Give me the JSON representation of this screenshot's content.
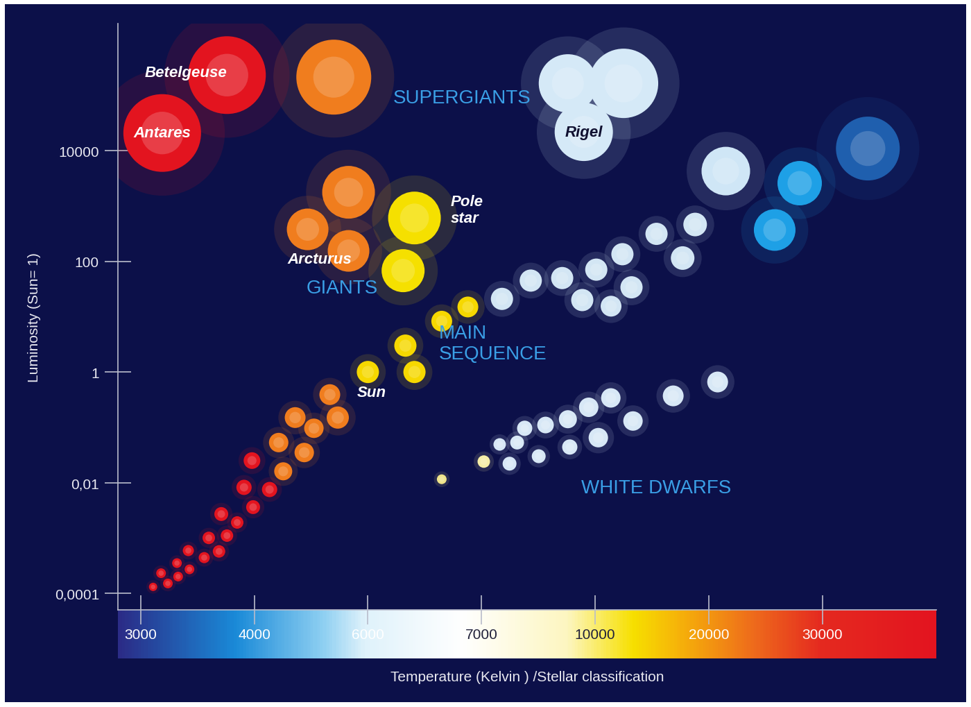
{
  "chart_data": {
    "type": "scatter",
    "xlabel": "Temperature (Kelvin ) /Stellar classification",
    "ylabel": "Luminosity (Sun= 1)",
    "log": "y",
    "grid": false,
    "xlim": [
      40000,
      2800
    ],
    "xticks": [
      30000,
      20000,
      10000,
      7000,
      6000,
      4000,
      3000
    ],
    "ylim": [
      5e-05,
      2000000
    ],
    "yticks": [
      {
        "value": 0.0001,
        "label": "0,0001"
      },
      {
        "value": 0.01,
        "label": "0,01"
      },
      1,
      100,
      10000
    ],
    "series": [
      {
        "x": [
          34000,
          28000,
          21500,
          25800,
          18800,
          15400,
          17700,
          12400,
          10100,
          9130,
          8300,
          13200,
          9660,
          11400,
          7540,
          6880,
          6650,
          6330,
          6410,
          6000,
          5330,
          5470,
          5050,
          4720,
          4430,
          4880,
          4510,
          3980,
          4270,
          3910,
          3990,
          3710,
          3850,
          3760,
          3600,
          3690,
          3420,
          3560,
          3320,
          3430,
          3180,
          3330,
          3240,
          3110
        ],
        "values": [
          11000,
          2600,
          4300,
          370,
          465,
          315,
          115,
          135,
          71,
          50,
          45,
          34,
          20,
          15.5,
          21,
          15,
          8.3,
          3,
          1,
          1,
          0.39,
          0.15,
          0.096,
          0.15,
          0.053,
          0.035,
          0.016,
          0.025,
          0.0075,
          0.0082,
          0.0036,
          0.0027,
          0.0019,
          0.0011,
          0.001,
          0.00057,
          0.00059,
          0.00044,
          0.00035,
          0.00027,
          0.00023,
          0.0002,
          0.00015,
          0.00013
        ],
        "sizes": [
          46,
          32,
          35,
          30,
          17,
          16,
          17,
          16,
          16,
          16,
          16,
          16,
          16,
          15,
          16,
          15,
          15,
          16,
          16,
          16,
          15,
          16,
          14,
          15,
          14,
          14,
          13,
          12,
          11,
          11,
          10,
          10,
          9,
          9,
          9,
          9,
          8,
          8,
          7,
          7,
          7,
          7,
          7,
          6
        ],
        "colors": [
          "#1f5fae",
          "#1ea0e6",
          "#cfe6f6",
          "#1ea0e6",
          "#d3e6f4",
          "#d3e6f4",
          "#d3e6f4",
          "#d3e6f4",
          "#d3e6f4",
          "#d3e6f4",
          "#d3e6f4",
          "#d3e6f4",
          "#d3e6f4",
          "#d3e6f4",
          "#d3e6f4",
          "#f6d800",
          "#f6d800",
          "#f6d800",
          "#f6d800",
          "#f6d800",
          "#f07d1e",
          "#f07d1e",
          "#f07d1e",
          "#f07d1e",
          "#f07d1e",
          "#f07d1e",
          "#f07d1e",
          "#e3141f",
          "#e3141f",
          "#e3141f",
          "#e3141f",
          "#e3141f",
          "#e3141f",
          "#e3141f",
          "#e3141f",
          "#e3141f",
          "#e3141f",
          "#e3141f",
          "#e3141f",
          "#e3141f",
          "#e3141f",
          "#e3141f",
          "#e3141f",
          "#e3141f"
        ]
      },
      {
        "x": [
          20780,
          16870,
          11380,
          9830,
          13330,
          9280,
          8690,
          8140,
          10280,
          9330,
          7940,
          7480,
          8510,
          7740,
          7060,
          6650
        ],
        "values": [
          0.66,
          0.37,
          0.34,
          0.23,
          0.13,
          0.14,
          0.11,
          0.096,
          0.065,
          0.044,
          0.053,
          0.049,
          0.03,
          0.022,
          0.024,
          0.0115
        ],
        "sizes": [
          15,
          15,
          14,
          14,
          14,
          13,
          12,
          11,
          14,
          11,
          10,
          9,
          10,
          10,
          9,
          7
        ],
        "colors": [
          "#d8e8f6",
          "#d8e8f6",
          "#d8e8f6",
          "#d8e8f6",
          "#d8e8f6",
          "#d8e8f6",
          "#d8e8f6",
          "#d8e8f6",
          "#d8e8f6",
          "#d8e8f6",
          "#d8e8f6",
          "#d8e8f6",
          "#d8e8f6",
          "#d8e8f6",
          "#f7efa8",
          "#efe38a"
        ]
      },
      {
        "x": [
          6410,
          6310,
          5660,
          4940,
          5660
        ],
        "values": [
          610,
          68,
          1780,
          380,
          155
        ],
        "sizes": [
          38,
          31,
          38,
          30,
          30
        ],
        "colors": [
          "#f5e000",
          "#f5e000",
          "#f07d1e",
          "#f07d1e",
          "#f07d1e"
        ]
      },
      {
        "x": [
          12500,
          9280,
          9700,
          5400,
          3760,
          3190
        ],
        "values": [
          166000,
          166000,
          22000,
          215000,
          234000,
          21000
        ],
        "sizes": [
          50,
          42,
          42,
          54,
          56,
          56
        ],
        "colors": [
          "#d5e9f7",
          "#d5e9f7",
          "#d5e9f7",
          "#f07d1e",
          "#e3141f",
          "#e3141f"
        ]
      }
    ],
    "annotations": [
      {
        "text": "SUPERGIANTS",
        "x": 6830,
        "y": 91000,
        "color": "#3a9fe6"
      },
      {
        "text": "GIANTS",
        "x": 5550,
        "y": 33,
        "color": "#3a9fe6"
      },
      {
        "text": "MAIN\nSEQUENCE",
        "x": 7300,
        "y": 3.3,
        "color": "#3a9fe6"
      },
      {
        "text": "WHITE DWARFS",
        "x": 15350,
        "y": 0.008,
        "color": "#3a9fe6"
      }
    ],
    "star_names": [
      {
        "text": "Rigel",
        "x": 9700,
        "y": 22000,
        "color": "#101030"
      },
      {
        "text": "Betelgeuse",
        "x": 3400,
        "y": 263000,
        "color": "#ffffff"
      },
      {
        "text": "Antares",
        "x": 3190,
        "y": 21000,
        "color": "#ffffff"
      },
      {
        "text": "Pole\nstar",
        "x": 6870,
        "y": 850,
        "color": "#ffffff"
      },
      {
        "text": "Arcturus",
        "x": 5150,
        "y": 110,
        "color": "#ffffff"
      },
      {
        "text": "Sun",
        "x": 6030,
        "y": 0.43,
        "color": "#ffffff"
      }
    ]
  }
}
